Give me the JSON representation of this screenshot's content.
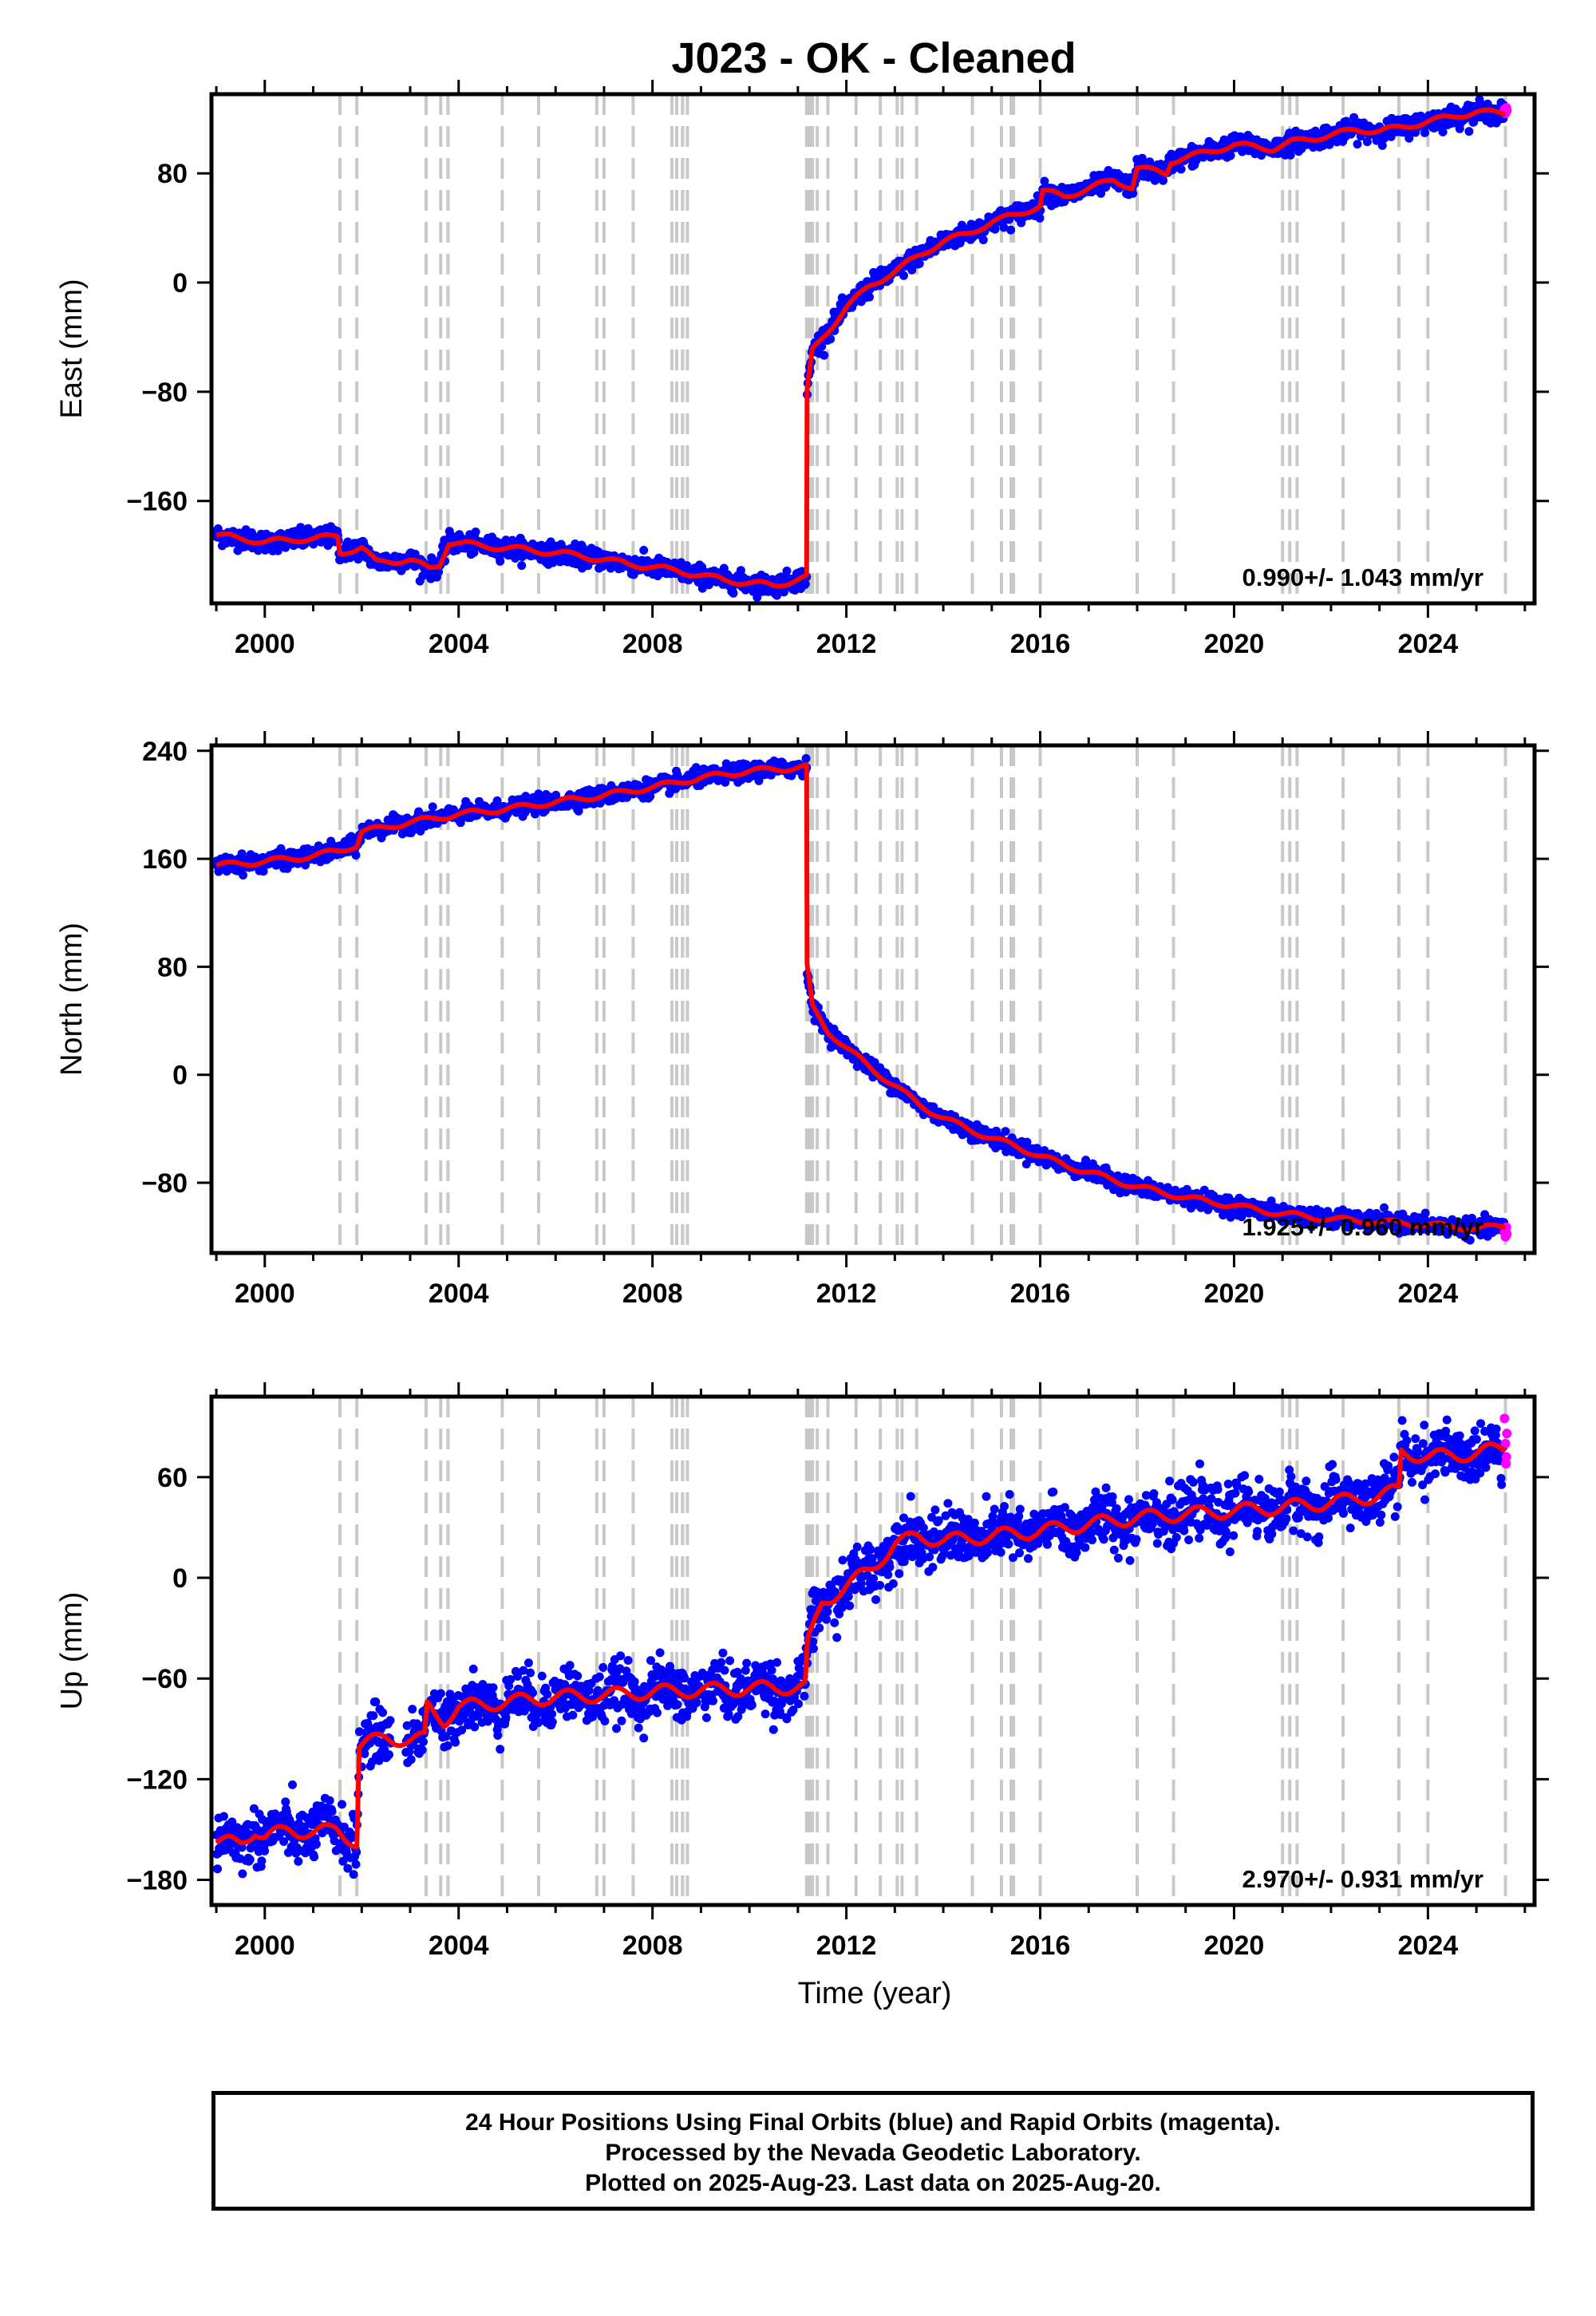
{
  "title": "J023  - OK - Cleaned",
  "footer": {
    "line1": "24 Hour Positions Using Final Orbits (blue) and Rapid Orbits (magenta).",
    "line2": "Processed by the Nevada Geodetic Laboratory.",
    "line3": "Plotted on 2025-Aug-23. Last data on 2025-Aug-20."
  },
  "colors": {
    "final": "#0000ff",
    "rapid": "#ff00ff",
    "model": "#ff0000",
    "event": "#c8c8c8"
  },
  "chart_data": [
    {
      "type": "scatter",
      "ylabel": "East (mm)",
      "xlabel": "",
      "rate": "0.990+/- 1.043 mm/yr",
      "xlim": [
        1998.9,
        2026.2
      ],
      "ylim": [
        -235,
        138
      ],
      "xticks": [
        "2000",
        "2004",
        "2008",
        "2012",
        "2016",
        "2020",
        "2024"
      ],
      "yticks": [
        "80",
        "0",
        "−80",
        "−160"
      ],
      "ytick_values": [
        80,
        0,
        -80,
        -160
      ],
      "noise": 3.5,
      "model": [
        [
          1999.0,
          -185
        ],
        [
          2000.0,
          -190
        ],
        [
          2001.5,
          -186
        ],
        [
          2001.55,
          -198
        ],
        [
          2002.0,
          -194
        ],
        [
          2002.3,
          -205
        ],
        [
          2003.0,
          -203
        ],
        [
          2003.4,
          -210
        ],
        [
          2003.6,
          -207
        ],
        [
          2003.8,
          -190
        ],
        [
          2004.5,
          -193
        ],
        [
          2005.5,
          -196
        ],
        [
          2006.5,
          -200
        ],
        [
          2007.5,
          -206
        ],
        [
          2008.5,
          -211
        ],
        [
          2009.5,
          -218
        ],
        [
          2010.5,
          -222
        ],
        [
          2011.18,
          -216
        ],
        [
          2011.19,
          -80
        ],
        [
          2011.3,
          -50
        ],
        [
          2011.7,
          -32
        ],
        [
          2012.0,
          -18
        ],
        [
          2012.5,
          -2
        ],
        [
          2013.0,
          8
        ],
        [
          2013.5,
          20
        ],
        [
          2014.0,
          30
        ],
        [
          2014.5,
          36
        ],
        [
          2015.0,
          44
        ],
        [
          2015.5,
          50
        ],
        [
          2016.0,
          56
        ],
        [
          2016.05,
          67
        ],
        [
          2016.5,
          63
        ],
        [
          2017.0,
          69
        ],
        [
          2017.5,
          75
        ],
        [
          2017.9,
          70
        ],
        [
          2018.0,
          84
        ],
        [
          2018.6,
          80
        ],
        [
          2018.7,
          89
        ],
        [
          2019.5,
          96
        ],
        [
          2020.0,
          101
        ],
        [
          2020.8,
          98
        ],
        [
          2021.2,
          103
        ],
        [
          2022.0,
          108
        ],
        [
          2022.5,
          112
        ],
        [
          2023.0,
          111
        ],
        [
          2023.5,
          114
        ],
        [
          2024.0,
          118
        ],
        [
          2025.0,
          125
        ],
        [
          2025.6,
          124
        ]
      ],
      "rapid": [
        [
          2025.58,
          127
        ],
        [
          2025.6,
          124
        ],
        [
          2025.62,
          128
        ],
        [
          2025.63,
          126
        ]
      ]
    },
    {
      "type": "scatter",
      "ylabel": "North (mm)",
      "xlabel": "",
      "rate": "1.925+/- 0.960 mm/yr",
      "xlim": [
        1998.9,
        2026.2
      ],
      "ylim": [
        -132,
        244
      ],
      "xticks": [
        "2000",
        "2004",
        "2008",
        "2012",
        "2016",
        "2020",
        "2024"
      ],
      "yticks": [
        "240",
        "160",
        "80",
        "0",
        "−80"
      ],
      "ytick_values": [
        240,
        160,
        80,
        0,
        -80
      ],
      "noise": 3.0,
      "model": [
        [
          1999.0,
          155
        ],
        [
          2000.0,
          158
        ],
        [
          2001.0,
          162
        ],
        [
          2001.5,
          166
        ],
        [
          2001.9,
          170
        ],
        [
          2002.0,
          180
        ],
        [
          2003.0,
          187
        ],
        [
          2004.0,
          193
        ],
        [
          2005.0,
          197
        ],
        [
          2006.0,
          202
        ],
        [
          2007.0,
          207
        ],
        [
          2008.0,
          213
        ],
        [
          2009.0,
          220
        ],
        [
          2010.0,
          225
        ],
        [
          2011.18,
          228
        ],
        [
          2011.19,
          80
        ],
        [
          2011.3,
          50
        ],
        [
          2011.6,
          33
        ],
        [
          2012.0,
          20
        ],
        [
          2012.5,
          5
        ],
        [
          2013.0,
          -8
        ],
        [
          2013.5,
          -22
        ],
        [
          2014.0,
          -32
        ],
        [
          2014.5,
          -40
        ],
        [
          2015.0,
          -47
        ],
        [
          2015.5,
          -53
        ],
        [
          2016.0,
          -60
        ],
        [
          2016.5,
          -67
        ],
        [
          2017.0,
          -72
        ],
        [
          2017.5,
          -78
        ],
        [
          2018.0,
          -83
        ],
        [
          2018.5,
          -87
        ],
        [
          2019.0,
          -91
        ],
        [
          2019.5,
          -94
        ],
        [
          2020.0,
          -97
        ],
        [
          2020.5,
          -100
        ],
        [
          2021.0,
          -103
        ],
        [
          2022.0,
          -107
        ],
        [
          2023.0,
          -109
        ],
        [
          2024.0,
          -111
        ],
        [
          2025.0,
          -114
        ],
        [
          2025.6,
          -112
        ]
      ],
      "rapid": [
        [
          2025.58,
          -117
        ],
        [
          2025.6,
          -120
        ],
        [
          2025.62,
          -113
        ],
        [
          2025.63,
          -118
        ]
      ]
    },
    {
      "type": "scatter",
      "ylabel": "Up (mm)",
      "xlabel": "Time (year)",
      "rate": "2.970+/- 0.931 mm/yr",
      "xlim": [
        1998.9,
        2026.2
      ],
      "ylim": [
        -195,
        108
      ],
      "xticks": [
        "2000",
        "2004",
        "2008",
        "2012",
        "2016",
        "2020",
        "2024"
      ],
      "yticks": [
        "60",
        "0",
        "−60",
        "−120",
        "−180"
      ],
      "ytick_values": [
        60,
        0,
        -60,
        -120,
        -180
      ],
      "noise": 8.0,
      "model": [
        [
          1999.0,
          -158
        ],
        [
          1999.5,
          -158
        ],
        [
          1999.8,
          -150
        ],
        [
          2000.0,
          -155
        ],
        [
          2000.5,
          -150
        ],
        [
          2001.0,
          -152
        ],
        [
          2001.5,
          -150
        ],
        [
          2001.9,
          -158
        ],
        [
          2001.95,
          -100
        ],
        [
          2002.5,
          -95
        ],
        [
          2003.0,
          -97
        ],
        [
          2003.3,
          -96
        ],
        [
          2003.35,
          -77
        ],
        [
          2003.7,
          -85
        ],
        [
          2004.0,
          -77
        ],
        [
          2005.0,
          -74
        ],
        [
          2006.0,
          -71
        ],
        [
          2007.0,
          -70
        ],
        [
          2008.0,
          -68
        ],
        [
          2009.0,
          -67
        ],
        [
          2010.0,
          -66
        ],
        [
          2011.15,
          -65
        ],
        [
          2011.2,
          -40
        ],
        [
          2011.5,
          -15
        ],
        [
          2012.0,
          -5
        ],
        [
          2012.5,
          5
        ],
        [
          2013.0,
          20
        ],
        [
          2013.5,
          25
        ],
        [
          2014.0,
          22
        ],
        [
          2015.0,
          25
        ],
        [
          2016.0,
          28
        ],
        [
          2017.0,
          32
        ],
        [
          2018.0,
          36
        ],
        [
          2019.0,
          38
        ],
        [
          2020.0,
          40
        ],
        [
          2021.0,
          42
        ],
        [
          2022.0,
          45
        ],
        [
          2023.0,
          49
        ],
        [
          2023.4,
          52
        ],
        [
          2023.45,
          75
        ],
        [
          2024.0,
          72
        ],
        [
          2025.0,
          74
        ],
        [
          2025.6,
          78
        ]
      ],
      "rapid": [
        [
          2025.58,
          95
        ],
        [
          2025.6,
          80
        ],
        [
          2025.61,
          68
        ],
        [
          2025.62,
          72
        ],
        [
          2025.63,
          86
        ]
      ]
    }
  ],
  "events": [
    2001.55,
    2001.9,
    2003.33,
    2003.63,
    2003.78,
    2004.9,
    2005.65,
    2006.85,
    2007.0,
    2007.6,
    2008.4,
    2008.5,
    2008.62,
    2008.72,
    2011.18,
    2011.24,
    2011.3,
    2011.4,
    2011.62,
    2012.2,
    2012.7,
    2013.05,
    2013.15,
    2013.45,
    2014.6,
    2015.2,
    2015.4,
    2015.45,
    2016.0,
    2018.0,
    2018.75,
    2021.0,
    2021.15,
    2021.3,
    2022.25,
    2023.4,
    2024.0,
    2025.6
  ],
  "panels_order": [
    "east",
    "north",
    "up"
  ]
}
